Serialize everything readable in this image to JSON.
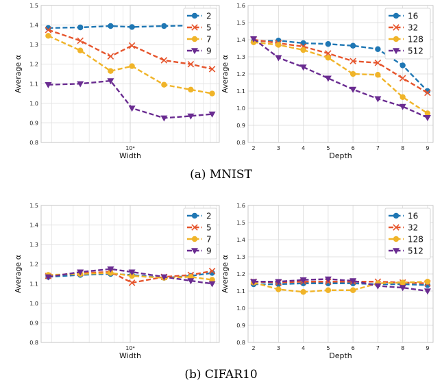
{
  "captions": {
    "a": "(a) MNIST",
    "b": "(b) CIFAR10"
  },
  "colors": {
    "blue": "#1f77b4",
    "orange": "#e6552d",
    "yellow": "#f0b429",
    "purple": "#6a2c91"
  },
  "chart_data": [
    {
      "type": "line",
      "xlabel": "Width",
      "ylabel": "Average α",
      "xscale": "log",
      "x_tick_labels": [
        "10⁴"
      ],
      "x": [
        1,
        2,
        3,
        4,
        5,
        6,
        7
      ],
      "ylim": [
        0.8,
        1.5
      ],
      "yticks": [
        "0.8",
        "0.9",
        "1.0",
        "1.1",
        "1.2",
        "1.3",
        "1.4",
        "1.5"
      ],
      "grid": true,
      "legend_position": "top-right",
      "series": [
        {
          "name": "2",
          "color": "#1f77b4",
          "marker": "circle",
          "values": [
            1.385,
            1.388,
            1.395,
            1.39,
            1.395,
            1.398,
            1.4
          ]
        },
        {
          "name": "5",
          "color": "#e6552d",
          "marker": "x",
          "values": [
            1.375,
            1.32,
            1.24,
            1.295,
            1.22,
            1.2,
            1.175
          ]
        },
        {
          "name": "7",
          "color": "#f0b429",
          "marker": "circle",
          "values": [
            1.345,
            1.27,
            1.165,
            1.19,
            1.095,
            1.07,
            1.05
          ]
        },
        {
          "name": "9",
          "color": "#6a2c91",
          "marker": "triangle-down",
          "values": [
            1.095,
            1.1,
            1.115,
            0.975,
            0.925,
            0.935,
            0.945
          ]
        }
      ]
    },
    {
      "type": "line",
      "xlabel": "Depth",
      "ylabel": "Average α",
      "x": [
        2,
        3,
        4,
        5,
        6,
        7,
        8,
        9
      ],
      "ylim": [
        0.8,
        1.6
      ],
      "yticks": [
        "0.8",
        "0.9",
        "1.0",
        "1.1",
        "1.2",
        "1.3",
        "1.4",
        "1.5",
        "1.6"
      ],
      "grid": true,
      "legend_position": "top-right",
      "series": [
        {
          "name": "16",
          "color": "#1f77b4",
          "marker": "circle",
          "values": [
            1.39,
            1.395,
            1.38,
            1.375,
            1.365,
            1.345,
            1.25,
            1.1
          ]
        },
        {
          "name": "32",
          "color": "#e6552d",
          "marker": "x",
          "values": [
            1.4,
            1.38,
            1.36,
            1.32,
            1.275,
            1.265,
            1.175,
            1.09
          ]
        },
        {
          "name": "128",
          "color": "#f0b429",
          "marker": "circle",
          "values": [
            1.385,
            1.37,
            1.34,
            1.295,
            1.2,
            1.195,
            1.065,
            0.97
          ]
        },
        {
          "name": "512",
          "color": "#6a2c91",
          "marker": "triangle-down",
          "values": [
            1.405,
            1.295,
            1.24,
            1.175,
            1.11,
            1.055,
            1.01,
            0.945
          ]
        }
      ]
    },
    {
      "type": "line",
      "xlabel": "Width",
      "ylabel": "Average α",
      "xscale": "log",
      "x_tick_labels": [
        "10⁴"
      ],
      "x": [
        1,
        2,
        3,
        4,
        5,
        6,
        7
      ],
      "ylim": [
        0.8,
        1.5
      ],
      "yticks": [
        "0.8",
        "0.9",
        "1.0",
        "1.1",
        "1.2",
        "1.3",
        "1.4",
        "1.5"
      ],
      "grid": true,
      "legend_position": "top-right",
      "series": [
        {
          "name": "2",
          "color": "#1f77b4",
          "marker": "circle",
          "values": [
            1.135,
            1.145,
            1.15,
            1.145,
            1.13,
            1.14,
            1.155
          ]
        },
        {
          "name": "5",
          "color": "#e6552d",
          "marker": "x",
          "values": [
            1.14,
            1.155,
            1.16,
            1.105,
            1.135,
            1.145,
            1.165
          ]
        },
        {
          "name": "7",
          "color": "#f0b429",
          "marker": "circle",
          "values": [
            1.145,
            1.15,
            1.155,
            1.14,
            1.13,
            1.135,
            1.12
          ]
        },
        {
          "name": "9",
          "color": "#6a2c91",
          "marker": "triangle-down",
          "values": [
            1.135,
            1.16,
            1.175,
            1.16,
            1.135,
            1.115,
            1.1
          ]
        }
      ]
    },
    {
      "type": "line",
      "xlabel": "Depth",
      "ylabel": "Average α",
      "x": [
        2,
        3,
        4,
        5,
        6,
        7,
        8,
        9
      ],
      "ylim": [
        0.8,
        1.6
      ],
      "yticks": [
        "0.8",
        "0.9",
        "1.0",
        "1.1",
        "1.2",
        "1.3",
        "1.4",
        "1.5",
        "1.6"
      ],
      "grid": true,
      "legend_position": "top-right",
      "series": [
        {
          "name": "16",
          "color": "#1f77b4",
          "marker": "circle",
          "values": [
            1.14,
            1.14,
            1.145,
            1.145,
            1.145,
            1.14,
            1.14,
            1.135
          ]
        },
        {
          "name": "32",
          "color": "#e6552d",
          "marker": "x",
          "values": [
            1.155,
            1.15,
            1.155,
            1.155,
            1.155,
            1.155,
            1.15,
            1.145
          ]
        },
        {
          "name": "128",
          "color": "#f0b429",
          "marker": "circle",
          "values": [
            1.15,
            1.11,
            1.095,
            1.105,
            1.105,
            1.145,
            1.15,
            1.155
          ]
        },
        {
          "name": "512",
          "color": "#6a2c91",
          "marker": "triangle-down",
          "values": [
            1.155,
            1.155,
            1.165,
            1.17,
            1.16,
            1.13,
            1.12,
            1.1
          ]
        }
      ]
    }
  ]
}
